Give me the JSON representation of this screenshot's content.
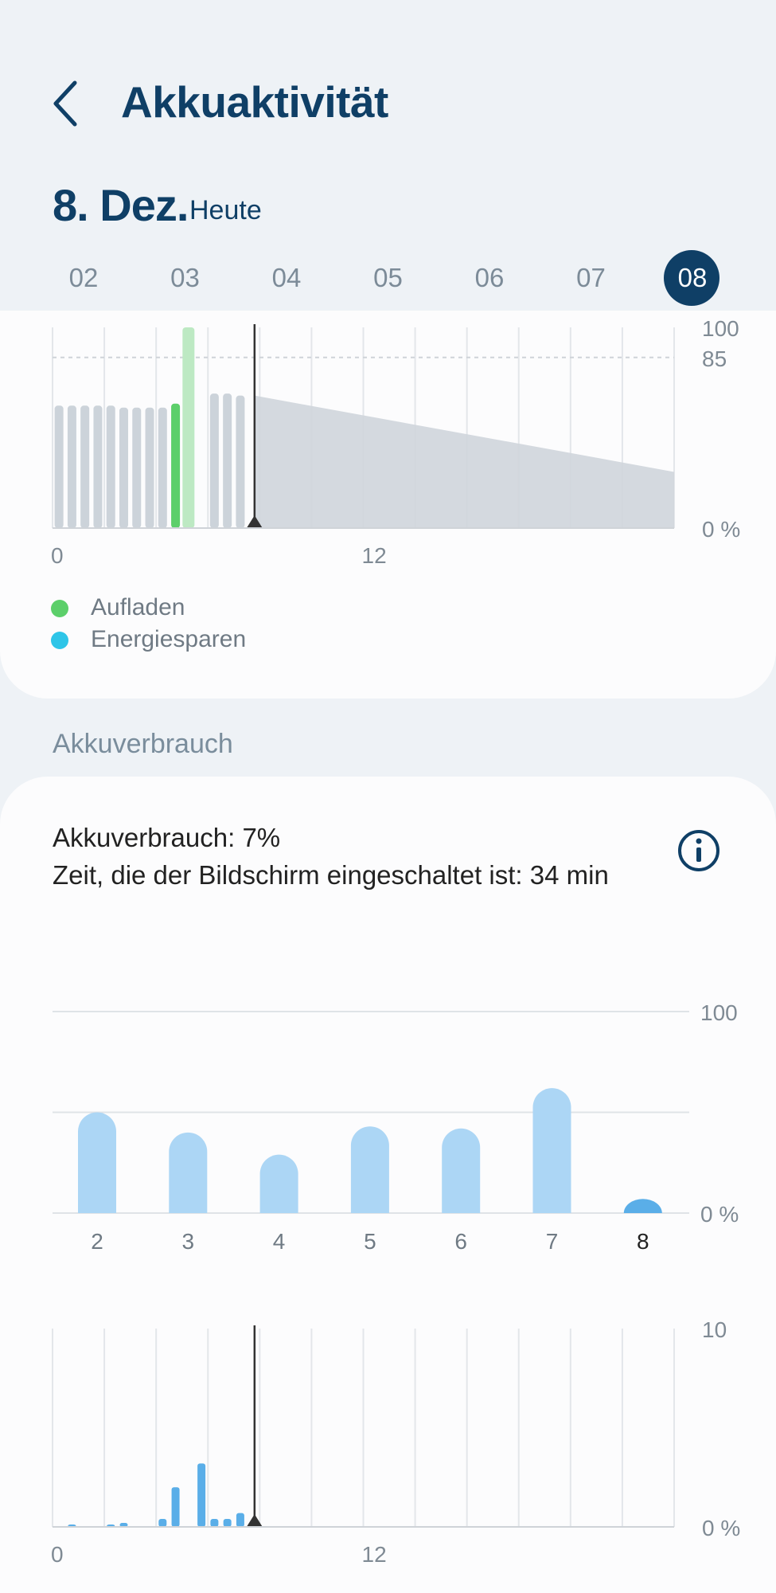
{
  "header": {
    "title": "Akkuaktivität",
    "date": "8. Dez.",
    "date_sub": "Heute"
  },
  "day_selector": {
    "days": [
      "02",
      "03",
      "04",
      "05",
      "06",
      "07",
      "08"
    ],
    "selected": "08"
  },
  "battery_chart": {
    "y_labels": [
      "100",
      "85",
      "0 %"
    ],
    "x_labels": [
      "0",
      "12"
    ],
    "legend": [
      {
        "label": "Aufladen",
        "color": "#5ccf6a"
      },
      {
        "label": "Energiesparen",
        "color": "#2ec5e8"
      }
    ]
  },
  "usage_section": {
    "header": "Akkuverbrauch",
    "line1": "Akkuverbrauch: 7%",
    "line2": "Zeit, die der Bildschirm eingeschaltet ist: 34 min"
  },
  "chart_data": [
    {
      "type": "bar",
      "title": "",
      "x_range": [
        0,
        24
      ],
      "ylim": [
        0,
        100
      ],
      "y_labels": [
        "100",
        "85",
        "0 %"
      ],
      "x_labels": [
        "0",
        "12"
      ],
      "reference_line": 85,
      "current_hour": 7.8,
      "bars": [
        {
          "hour": 0.25,
          "value": 61,
          "status": "normal"
        },
        {
          "hour": 0.75,
          "value": 61,
          "status": "normal"
        },
        {
          "hour": 1.25,
          "value": 61,
          "status": "normal"
        },
        {
          "hour": 1.75,
          "value": 61,
          "status": "normal"
        },
        {
          "hour": 2.25,
          "value": 61,
          "status": "normal"
        },
        {
          "hour": 2.75,
          "value": 60,
          "status": "normal"
        },
        {
          "hour": 3.25,
          "value": 60,
          "status": "normal"
        },
        {
          "hour": 3.75,
          "value": 60,
          "status": "normal"
        },
        {
          "hour": 4.25,
          "value": 60,
          "status": "normal"
        },
        {
          "hour": 4.75,
          "value": 62,
          "status": "charging"
        },
        {
          "hour": 5.25,
          "value": 100,
          "status": "charging-highlight"
        },
        {
          "hour": 6.25,
          "value": 67,
          "status": "normal"
        },
        {
          "hour": 6.75,
          "value": 67,
          "status": "normal"
        },
        {
          "hour": 7.25,
          "value": 66,
          "status": "normal"
        }
      ],
      "forecast": {
        "start_hour": 7.8,
        "start_value": 66,
        "end_hour": 24,
        "end_value": 28
      },
      "legend": [
        "Aufladen",
        "Energiesparen"
      ]
    },
    {
      "type": "bar",
      "title": "",
      "categories": [
        "2",
        "3",
        "4",
        "5",
        "6",
        "7",
        "8"
      ],
      "values": [
        50,
        40,
        29,
        43,
        42,
        62,
        7
      ],
      "ylim": [
        0,
        100
      ],
      "y_labels": [
        "100",
        "0 %"
      ],
      "selected": "8"
    },
    {
      "type": "bar",
      "title": "",
      "x_range": [
        0,
        24
      ],
      "ylim": [
        0,
        10
      ],
      "y_labels": [
        "10",
        "0 %"
      ],
      "x_labels": [
        "0",
        "12"
      ],
      "current_hour": 7.8,
      "bars": [
        {
          "hour": 0.75,
          "value": 0.1
        },
        {
          "hour": 2.25,
          "value": 0.1
        },
        {
          "hour": 2.75,
          "value": 0.2
        },
        {
          "hour": 4.25,
          "value": 0.4
        },
        {
          "hour": 4.75,
          "value": 2.0
        },
        {
          "hour": 5.75,
          "value": 3.2
        },
        {
          "hour": 6.25,
          "value": 0.4
        },
        {
          "hour": 6.75,
          "value": 0.4
        },
        {
          "hour": 7.25,
          "value": 0.7
        }
      ]
    }
  ]
}
